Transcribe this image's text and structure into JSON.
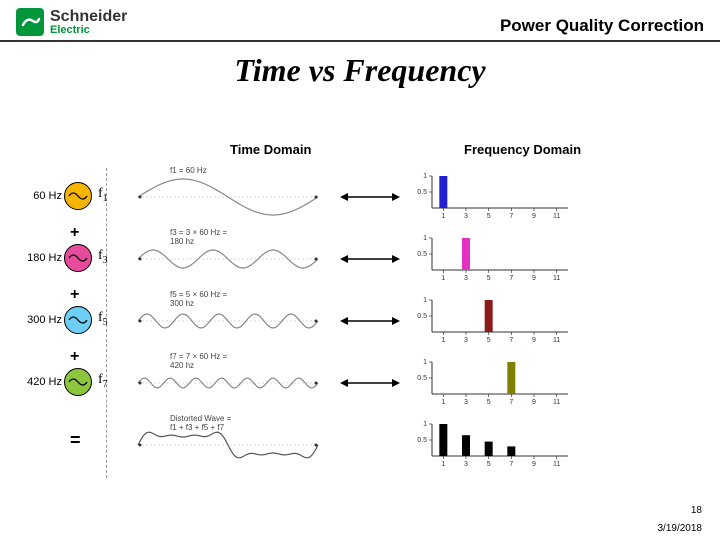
{
  "header": {
    "logo_main": "Schneider",
    "logo_sub": "Electric",
    "right": "Power Quality Correction"
  },
  "title": "Time vs  Frequency",
  "subheads": {
    "time": "Time Domain",
    "freq": "Frequency Domain"
  },
  "footer": {
    "page": "18",
    "date": "3/19/2018"
  },
  "rows": [
    {
      "freq_label": "60 Hz",
      "fn": "f",
      "fn_sub": "1",
      "plus": "",
      "osc_fill": "#f7b500",
      "osc_stroke": "#000000",
      "wave_title": "f1 = 60 Hz",
      "wave": {
        "cycles": 1,
        "amp": 18,
        "color": "#888888"
      },
      "bars": {
        "values": [
          1.0,
          0,
          0,
          0,
          0,
          0
        ],
        "color": "#2020d0",
        "ymax": 1.0,
        "yticks": [
          "0.5",
          "1"
        ]
      }
    },
    {
      "freq_label": "180 Hz",
      "fn": "f",
      "fn_sub": "3",
      "plus": "+",
      "osc_fill": "#e74c9c",
      "osc_stroke": "#000000",
      "wave_title": "f3 = 3 × 60 Hz =\n180 hz",
      "wave": {
        "cycles": 3,
        "amp": 9,
        "color": "#888888"
      },
      "bars": {
        "values": [
          0,
          1.0,
          0,
          0,
          0,
          0
        ],
        "color": "#e430c0",
        "ymax": 1.0,
        "yticks": [
          "0.5",
          "1"
        ]
      }
    },
    {
      "freq_label": "300 Hz",
      "fn": "f",
      "fn_sub": "5",
      "plus": "+",
      "osc_fill": "#6ecff6",
      "osc_stroke": "#000000",
      "wave_title": "f5 = 5 × 60 Hz =\n300 hz",
      "wave": {
        "cycles": 5,
        "amp": 7,
        "color": "#888888"
      },
      "bars": {
        "values": [
          0,
          0,
          1.0,
          0,
          0,
          0
        ],
        "color": "#8b1a1a",
        "ymax": 1.0,
        "yticks": [
          "0.5",
          "1"
        ]
      }
    },
    {
      "freq_label": "420 Hz",
      "fn": "f",
      "fn_sub": "7",
      "plus": "+",
      "osc_fill": "#8cc63f",
      "osc_stroke": "#000000",
      "wave_title": "f7 = 7 × 60 Hz =\n420 hz",
      "wave": {
        "cycles": 7,
        "amp": 5,
        "color": "#888888"
      },
      "bars": {
        "values": [
          0,
          0,
          0,
          1.0,
          0,
          0
        ],
        "color": "#808000",
        "ymax": 1.0,
        "yticks": [
          "0.5",
          "1"
        ]
      }
    },
    {
      "freq_label": "",
      "fn": "",
      "fn_sub": "",
      "plus": "=",
      "is_sum": true,
      "osc_fill": "",
      "osc_stroke": "",
      "wave_title": "Distorted Wave =\nf1 + f3 + f5 + f7",
      "wave": {
        "composite": true,
        "color": "#555555"
      },
      "bars": {
        "values": [
          1.0,
          0.65,
          0.45,
          0.3,
          0,
          0
        ],
        "color": "#000000",
        "ymax": 1.0,
        "yticks": [
          "0.5",
          "1"
        ]
      }
    }
  ],
  "bar_xlabels": [
    "1",
    "3",
    "5",
    "7",
    "9",
    "11"
  ]
}
